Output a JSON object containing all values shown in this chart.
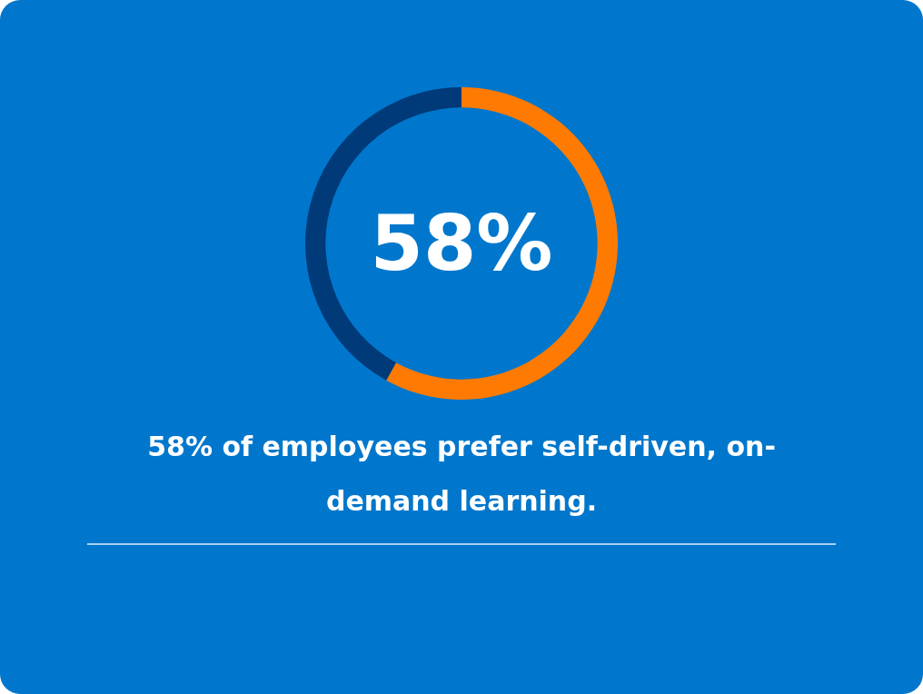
{
  "chart_data": {
    "type": "donut",
    "title": "58% of employees prefer self-driven, on-demand learning.",
    "categories": [
      null,
      null
    ],
    "values": [
      58,
      42
    ],
    "colors": [
      "#ff7a00",
      "#003a78"
    ],
    "annotations": [
      "58%"
    ]
  }
}
